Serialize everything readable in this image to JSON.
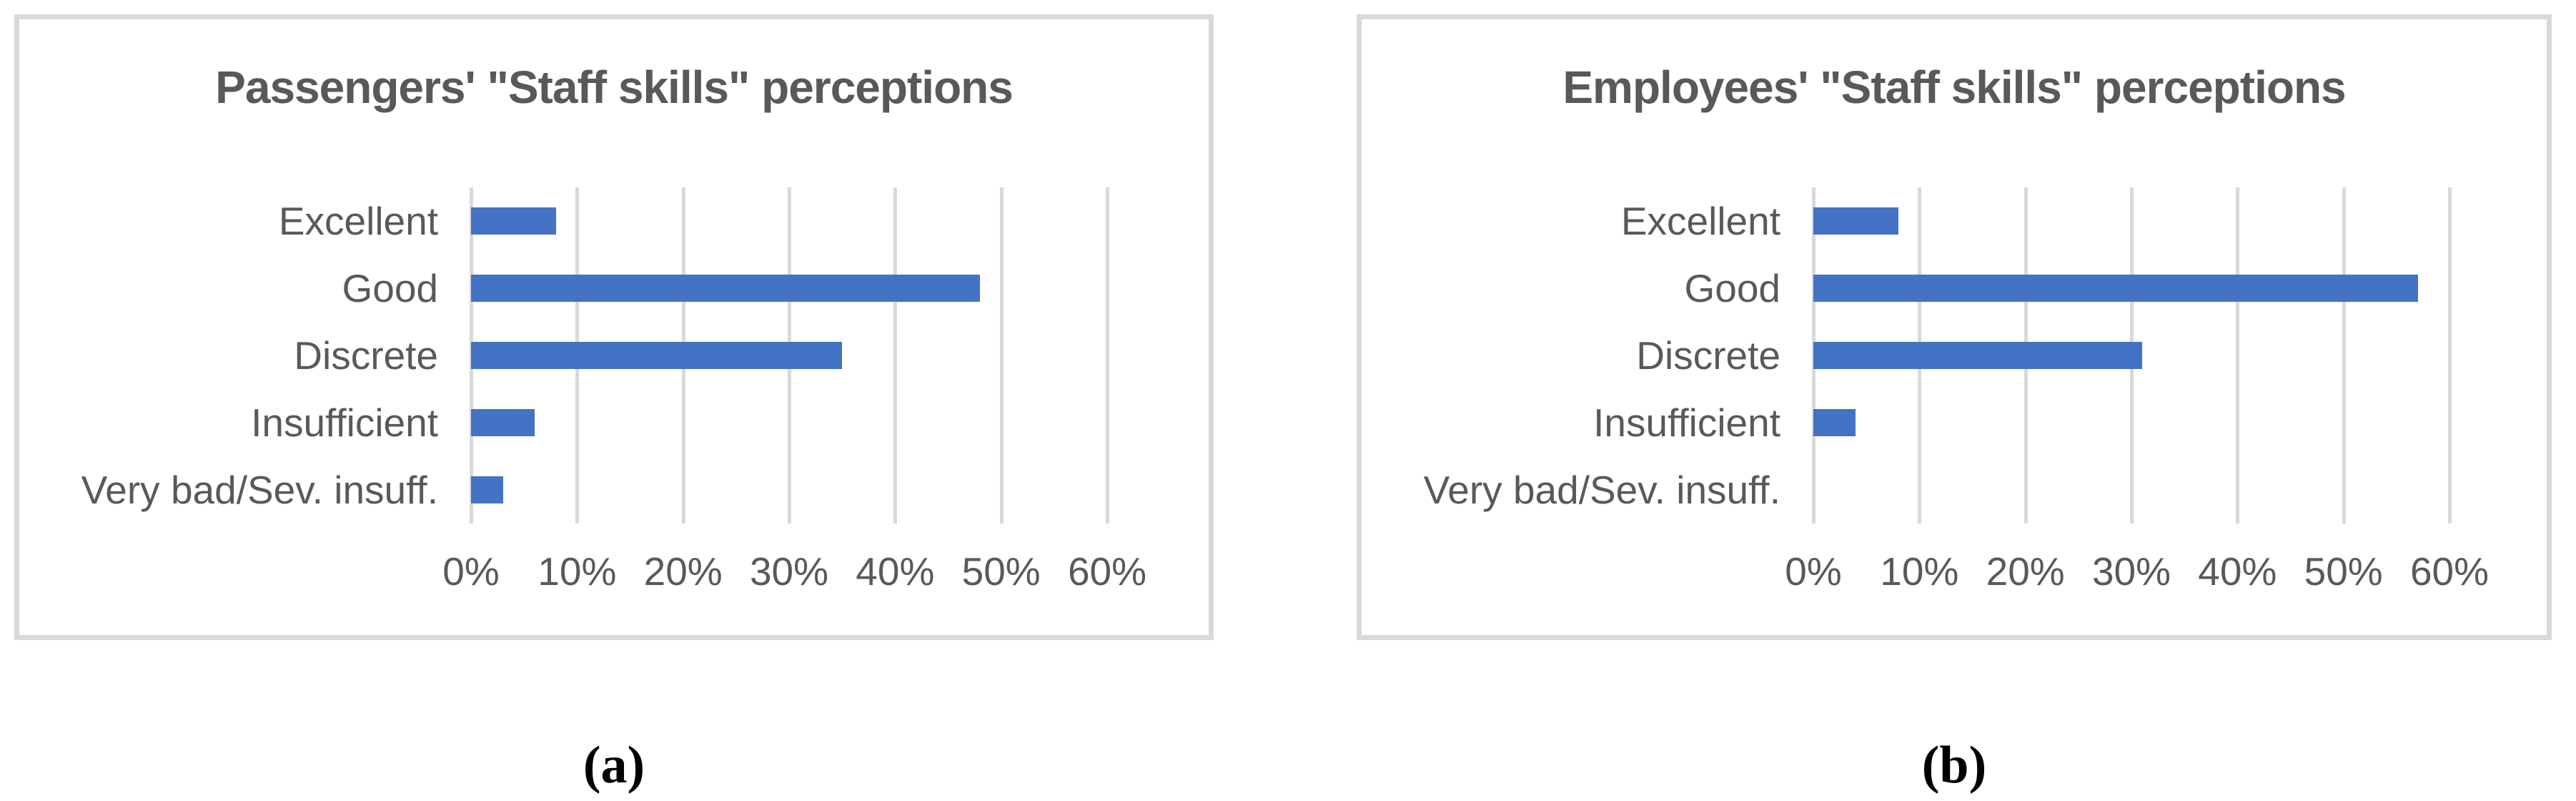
{
  "figure": {
    "description": "Two horizontal bar charts comparing staff-skills perceptions"
  },
  "colors": {
    "bar": "#4472C4",
    "grid": "#D9D9D9",
    "panel_border": "#D9D9D9",
    "text": "#595959",
    "caption": "#000000"
  },
  "chart_data": [
    {
      "id": "a",
      "type": "bar",
      "orientation": "horizontal",
      "title": "Passengers' \"Staff skills\" perceptions",
      "categories": [
        "Excellent",
        "Good",
        "Discrete",
        "Insufficient",
        "Very bad/Sev. insuff."
      ],
      "values": [
        8,
        48,
        35,
        6,
        3
      ],
      "unit": "%",
      "xlim": [
        0,
        60
      ],
      "x_ticks": [
        "0%",
        "10%",
        "20%",
        "30%",
        "40%",
        "50%",
        "60%"
      ],
      "grid": true,
      "legend": false,
      "caption": "(a)"
    },
    {
      "id": "b",
      "type": "bar",
      "orientation": "horizontal",
      "title": "Employees' \"Staff skills\" perceptions",
      "categories": [
        "Excellent",
        "Good",
        "Discrete",
        "Insufficient",
        "Very bad/Sev. insuff."
      ],
      "values": [
        8,
        57,
        31,
        4,
        0
      ],
      "unit": "%",
      "xlim": [
        0,
        60
      ],
      "x_ticks": [
        "0%",
        "10%",
        "20%",
        "30%",
        "40%",
        "50%",
        "60%"
      ],
      "grid": true,
      "legend": false,
      "caption": "(b)"
    }
  ]
}
